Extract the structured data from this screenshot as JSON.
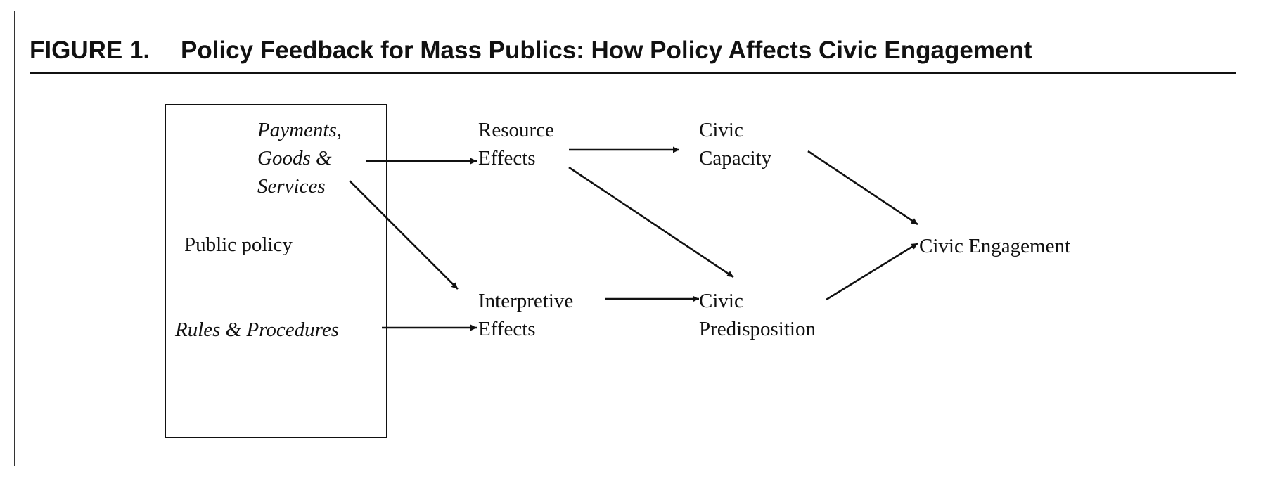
{
  "figure": {
    "number": "FIGURE 1.",
    "title": "Policy Feedback for Mass Publics: How Policy Affects Civic Engagement"
  },
  "nodes": {
    "payments": [
      "Payments,",
      "Goods &",
      "Services"
    ],
    "public_policy": "Public policy",
    "rules": "Rules & Procedures",
    "resource_effects": [
      "Resource",
      "Effects"
    ],
    "interpretive_effects": [
      "Interpretive",
      "Effects"
    ],
    "civic_capacity": [
      "Civic",
      "Capacity"
    ],
    "civic_predisposition": [
      "Civic",
      "Predisposition"
    ],
    "civic_engagement": "Civic Engagement"
  },
  "edges": [
    {
      "from": "payments",
      "to": "resource_effects"
    },
    {
      "from": "payments",
      "to": "interpretive_effects"
    },
    {
      "from": "rules",
      "to": "interpretive_effects"
    },
    {
      "from": "resource_effects",
      "to": "civic_capacity"
    },
    {
      "from": "resource_effects",
      "to": "civic_predisposition"
    },
    {
      "from": "interpretive_effects",
      "to": "civic_predisposition"
    },
    {
      "from": "civic_capacity",
      "to": "civic_engagement"
    },
    {
      "from": "civic_predisposition",
      "to": "civic_engagement"
    }
  ]
}
